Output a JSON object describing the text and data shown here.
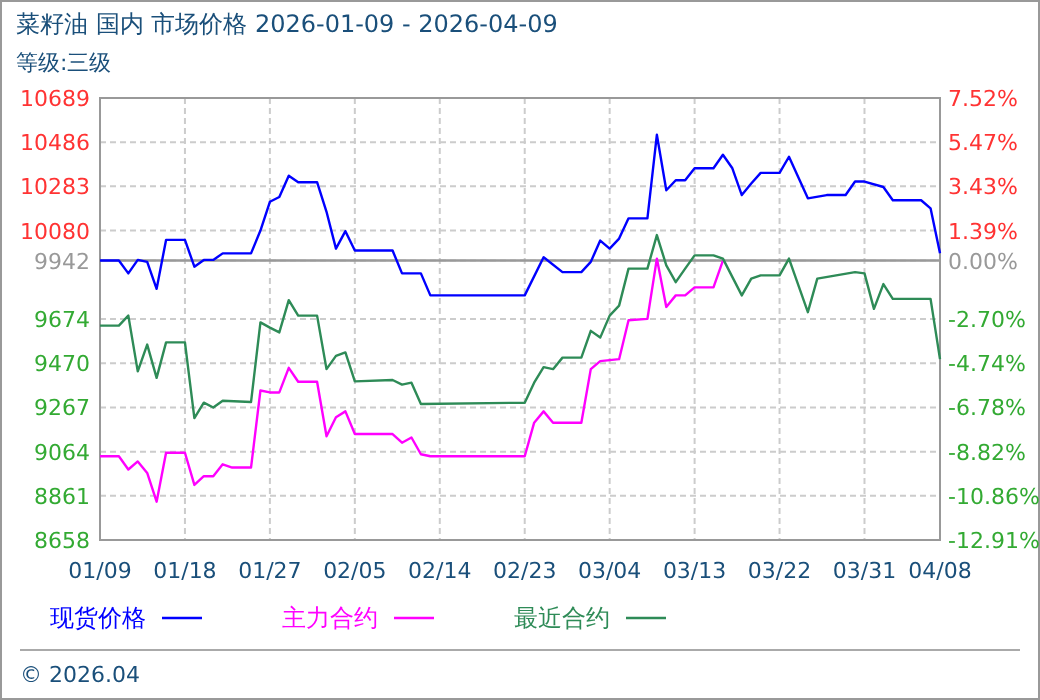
{
  "chart_data": {
    "type": "line",
    "title": "菜籽油 国内 市场价格 2026-01-09 - 2026-04-09",
    "subtitle": "等级:三级",
    "annotations": [
      "© 2026.04"
    ],
    "xlim": [
      "2026-01-09",
      "2026-04-08"
    ],
    "xticks": [
      {
        "value": "2026-01-09",
        "label": "01/09"
      },
      {
        "value": "2026-01-18",
        "label": "01/18"
      },
      {
        "value": "2026-01-27",
        "label": "01/27"
      },
      {
        "value": "2026-02-05",
        "label": "02/05"
      },
      {
        "value": "2026-02-14",
        "label": "02/14"
      },
      {
        "value": "2026-02-23",
        "label": "02/23"
      },
      {
        "value": "2026-03-04",
        "label": "03/04"
      },
      {
        "value": "2026-03-13",
        "label": "03/13"
      },
      {
        "value": "2026-03-22",
        "label": "03/22"
      },
      {
        "value": "2026-03-31",
        "label": "03/31"
      },
      {
        "value": "2026-04-08",
        "label": "04/08"
      }
    ],
    "ylim": [
      8658,
      10689
    ],
    "yticks": [
      8658,
      8861,
      9064,
      9267,
      9470,
      9674,
      9942,
      10080,
      10283,
      10486,
      10689
    ],
    "y2lim": [
      -12.91,
      7.52
    ],
    "y2ticks": [
      {
        "value": -12.91,
        "label": "-12.91%"
      },
      {
        "value": -10.86,
        "label": "-10.86%"
      },
      {
        "value": -8.82,
        "label": "-8.82%"
      },
      {
        "value": -6.78,
        "label": "-6.78%"
      },
      {
        "value": -4.74,
        "label": "-4.74%"
      },
      {
        "value": -2.7,
        "label": "-2.70%"
      },
      {
        "value": 0,
        "label": "0.00%"
      },
      {
        "value": 1.39,
        "label": "1.39%"
      },
      {
        "value": 3.43,
        "label": "3.43%"
      },
      {
        "value": 5.47,
        "label": "5.47%"
      },
      {
        "value": 7.52,
        "label": "7.52%"
      }
    ],
    "ref_lines": [
      {
        "axis": "y",
        "value": 9942,
        "color": "#999999"
      }
    ],
    "grid": true,
    "legend": "bottom",
    "line_style": "solid",
    "marker": "none",
    "series": [
      {
        "name": "现货价格",
        "color": "#0000ff",
        "x": [
          "2026-01-09",
          "2026-01-11",
          "2026-01-12",
          "2026-01-13",
          "2026-01-14",
          "2026-01-15",
          "2026-01-16",
          "2026-01-18",
          "2026-01-19",
          "2026-01-20",
          "2026-01-21",
          "2026-01-22",
          "2026-01-25",
          "2026-01-26",
          "2026-01-27",
          "2026-01-28",
          "2026-01-29",
          "2026-01-30",
          "2026-02-01",
          "2026-02-02",
          "2026-02-03",
          "2026-02-04",
          "2026-02-05",
          "2026-02-09",
          "2026-02-10",
          "2026-02-12",
          "2026-02-13",
          "2026-02-23",
          "2026-02-25",
          "2026-02-27",
          "2026-03-01",
          "2026-03-02",
          "2026-03-03",
          "2026-03-04",
          "2026-03-05",
          "2026-03-06",
          "2026-03-08",
          "2026-03-09",
          "2026-03-10",
          "2026-03-11",
          "2026-03-12",
          "2026-03-13",
          "2026-03-15",
          "2026-03-16",
          "2026-03-17",
          "2026-03-18",
          "2026-03-19",
          "2026-03-20",
          "2026-03-22",
          "2026-03-23",
          "2026-03-25",
          "2026-03-27",
          "2026-03-29",
          "2026-03-30",
          "2026-03-31",
          "2026-04-02",
          "2026-04-03",
          "2026-04-06",
          "2026-04-07",
          "2026-04-08"
        ],
        "values": [
          9942,
          9942,
          9883,
          9945,
          9936,
          9812,
          10037,
          10037,
          9914,
          9945,
          9945,
          9975,
          9975,
          10080,
          10212,
          10234,
          10332,
          10302,
          10302,
          10166,
          9997,
          10077,
          9988,
          9988,
          9883,
          9883,
          9782,
          9782,
          9957,
          9889,
          9889,
          9936,
          10034,
          9997,
          10043,
          10136,
          10136,
          10520,
          10265,
          10311,
          10311,
          10366,
          10366,
          10428,
          10366,
          10243,
          10296,
          10345,
          10345,
          10419,
          10228,
          10243,
          10243,
          10305,
          10305,
          10280,
          10219,
          10219,
          10182,
          9976
        ]
      },
      {
        "name": "主力合约",
        "color": "#ff00ff",
        "x": [
          "2026-01-09",
          "2026-01-11",
          "2026-01-12",
          "2026-01-13",
          "2026-01-14",
          "2026-01-15",
          "2026-01-16",
          "2026-01-18",
          "2026-01-19",
          "2026-01-20",
          "2026-01-21",
          "2026-01-22",
          "2026-01-23",
          "2026-01-25",
          "2026-01-26",
          "2026-01-27",
          "2026-01-28",
          "2026-01-29",
          "2026-01-30",
          "2026-02-01",
          "2026-02-02",
          "2026-02-03",
          "2026-02-04",
          "2026-02-05",
          "2026-02-09",
          "2026-02-10",
          "2026-02-11",
          "2026-02-12",
          "2026-02-13",
          "2026-02-23",
          "2026-02-24",
          "2026-02-25",
          "2026-02-26",
          "2026-03-01",
          "2026-03-02",
          "2026-03-03",
          "2026-03-05",
          "2026-03-06",
          "2026-03-08",
          "2026-03-09",
          "2026-03-10",
          "2026-03-11",
          "2026-03-12",
          "2026-03-13",
          "2026-03-15",
          "2026-03-16"
        ],
        "values": [
          9043,
          9043,
          8982,
          9019,
          8966,
          8834,
          9059,
          9059,
          8911,
          8951,
          8951,
          9006,
          8991,
          8991,
          9345,
          9336,
          9336,
          9449,
          9385,
          9385,
          9135,
          9222,
          9249,
          9145,
          9145,
          9105,
          9129,
          9052,
          9043,
          9043,
          9197,
          9249,
          9197,
          9197,
          9443,
          9480,
          9489,
          9668,
          9674,
          9951,
          9729,
          9782,
          9782,
          9819,
          9819,
          9942
        ]
      },
      {
        "name": "最近合约",
        "color": "#2e8b57",
        "x": [
          "2026-01-09",
          "2026-01-11",
          "2026-01-12",
          "2026-01-13",
          "2026-01-14",
          "2026-01-15",
          "2026-01-16",
          "2026-01-18",
          "2026-01-19",
          "2026-01-20",
          "2026-01-21",
          "2026-01-22",
          "2026-01-25",
          "2026-01-26",
          "2026-01-27",
          "2026-01-28",
          "2026-01-29",
          "2026-01-30",
          "2026-02-01",
          "2026-02-02",
          "2026-02-03",
          "2026-02-04",
          "2026-02-05",
          "2026-02-09",
          "2026-02-10",
          "2026-02-11",
          "2026-02-12",
          "2026-02-23",
          "2026-02-24",
          "2026-02-25",
          "2026-02-26",
          "2026-02-27",
          "2026-03-01",
          "2026-03-02",
          "2026-03-03",
          "2026-03-04",
          "2026-03-05",
          "2026-03-06",
          "2026-03-08",
          "2026-03-09",
          "2026-03-10",
          "2026-03-11",
          "2026-03-12",
          "2026-03-13",
          "2026-03-15",
          "2026-03-16",
          "2026-03-18",
          "2026-03-19",
          "2026-03-20",
          "2026-03-22",
          "2026-03-23",
          "2026-03-25",
          "2026-03-26",
          "2026-03-28",
          "2026-03-30",
          "2026-03-31",
          "2026-04-01",
          "2026-04-02",
          "2026-04-03",
          "2026-04-07",
          "2026-04-08"
        ],
        "values": [
          9643,
          9643,
          9689,
          9433,
          9556,
          9403,
          9566,
          9566,
          9218,
          9289,
          9267,
          9298,
          9292,
          9658,
          9634,
          9612,
          9760,
          9689,
          9689,
          9443,
          9504,
          9520,
          9387,
          9393,
          9372,
          9381,
          9283,
          9289,
          9381,
          9452,
          9443,
          9496,
          9496,
          9619,
          9588,
          9689,
          9735,
          9905,
          9905,
          10059,
          9920,
          9843,
          9905,
          9966,
          9966,
          9951,
          9782,
          9859,
          9874,
          9874,
          9951,
          9705,
          9859,
          9874,
          9889,
          9883,
          9720,
          9834,
          9766,
          9766,
          9489
        ]
      }
    ]
  }
}
